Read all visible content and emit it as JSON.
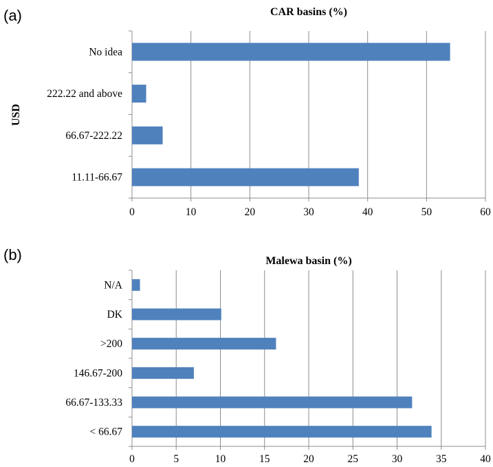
{
  "chart_data": [
    {
      "panel": "(a)",
      "type": "bar",
      "orientation": "horizontal",
      "title": "CAR basins (%)",
      "ylabel": "USD",
      "xlabel": "",
      "categories": [
        "No idea",
        "222.22 and above",
        "66.67-222.22",
        "11.11-66.67"
      ],
      "values": [
        54,
        2.4,
        5.2,
        38.5
      ],
      "xlim": [
        0,
        60
      ],
      "xticks": [
        0,
        10,
        20,
        30,
        40,
        50,
        60
      ],
      "grid": true,
      "bar_color": "#4f81bd"
    },
    {
      "panel": "(b)",
      "type": "bar",
      "orientation": "horizontal",
      "title": "Malewa basin (%)",
      "ylabel": "",
      "xlabel": "",
      "categories": [
        "N/A",
        "DK",
        ">200",
        "146.67-200",
        "66.67-133.33",
        "< 66.67"
      ],
      "values": [
        0.9,
        10.1,
        16.3,
        7,
        31.7,
        33.9
      ],
      "xlim": [
        0,
        40
      ],
      "xticks": [
        0,
        5,
        10,
        15,
        20,
        25,
        30,
        35,
        40
      ],
      "grid": true,
      "bar_color": "#4f81bd"
    }
  ]
}
